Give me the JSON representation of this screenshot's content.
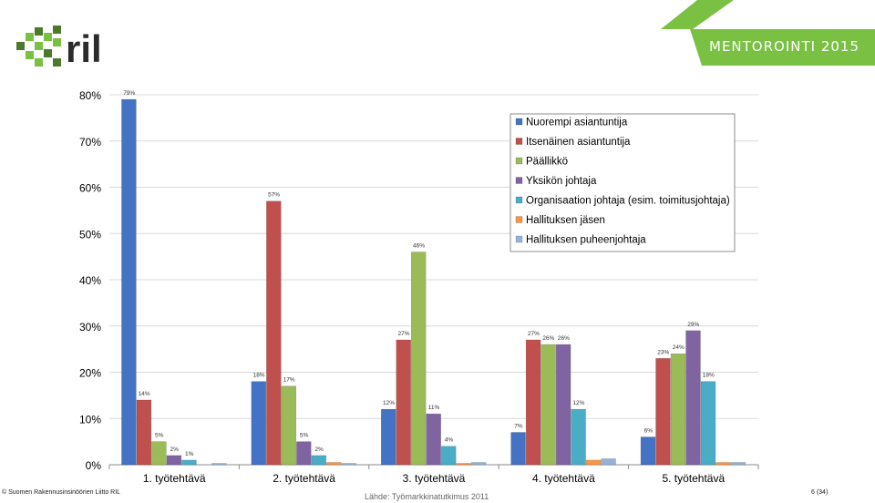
{
  "header": {
    "logo_text": "ril",
    "banner_title": "MENTOROINTI 2015",
    "colors": {
      "green": "#7ac143",
      "dark_green": "#4d7a2a"
    }
  },
  "chart_data": {
    "type": "bar",
    "categories": [
      "1. työtehtävä",
      "2. työtehtävä",
      "3. työtehtävä",
      "4. työtehtävä",
      "5. työtehtävä"
    ],
    "ylim": [
      0,
      80
    ],
    "yticks": [
      "0%",
      "10%",
      "20%",
      "30%",
      "40%",
      "50%",
      "60%",
      "70%",
      "80%"
    ],
    "grid": true,
    "legend_position": "top-right",
    "series": [
      {
        "name": "Nuorempi asiantuntija",
        "color": "#4472c4",
        "values": [
          79,
          18,
          12,
          7,
          6
        ],
        "labels": [
          "79%",
          "18%",
          "12%",
          "7%",
          "6%"
        ]
      },
      {
        "name": "Itsenäinen asiantuntija",
        "color": "#c0504d",
        "values": [
          14,
          57,
          27,
          27,
          23
        ],
        "labels": [
          "14%",
          "57%",
          "27%",
          "27%",
          "23%"
        ]
      },
      {
        "name": "Päällikkö",
        "color": "#9bbb59",
        "values": [
          5,
          17,
          46,
          26,
          24
        ],
        "labels": [
          "5%",
          "17%",
          "46%",
          "26%",
          "24%"
        ]
      },
      {
        "name": "Yksikön johtaja",
        "color": "#8064a2",
        "values": [
          2,
          5,
          11,
          26,
          29
        ],
        "labels": [
          "2%",
          "5%",
          "11%",
          "26%",
          "29%"
        ]
      },
      {
        "name": "Organisaation johtaja (esim. toimitusjohtaja)",
        "color": "#4bacc6",
        "values": [
          1,
          2,
          4,
          12,
          18
        ],
        "labels": [
          "1%",
          "2%",
          "4%",
          "12%",
          "18%"
        ]
      },
      {
        "name": "Hallituksen jäsen",
        "color": "#f79646",
        "values": [
          0,
          0.5,
          0.3,
          1,
          0.5
        ],
        "labels": [
          "",
          "",
          "",
          "",
          ""
        ]
      },
      {
        "name": "Hallituksen puheenjohtaja",
        "color": "#95b3d7",
        "values": [
          0.3,
          0.3,
          0.5,
          1.3,
          0.5
        ],
        "labels": [
          "",
          "",
          "",
          "",
          ""
        ]
      }
    ]
  },
  "footer": {
    "copyright": "© Suomen Rakennusinsinöörien Liitto RIL",
    "source": "Lähde: Työmarkkinatutkimus 2011",
    "page": "6 (34)"
  }
}
